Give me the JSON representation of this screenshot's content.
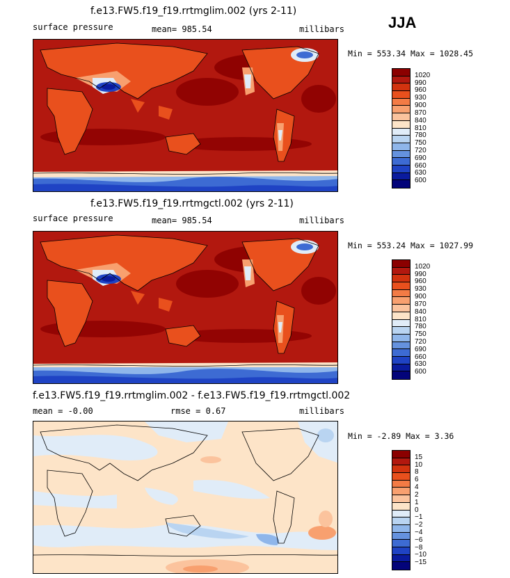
{
  "season": "JJA",
  "panels": [
    {
      "title": "f.e13.FW5.f19_f19.rrtmglim.002 (yrs 2-11)",
      "variable": "surface pressure",
      "stat": "mean=  985.54",
      "units": "millibars",
      "minmax": "Min = 553.34  Max = 1028.45",
      "colorbar_levels": [
        "1020",
        "990",
        "960",
        "930",
        "900",
        "870",
        "840",
        "810",
        "780",
        "750",
        "720",
        "690",
        "660",
        "630",
        "600"
      ],
      "colorbar_colors": [
        "#8b0000",
        "#b2180f",
        "#d2330f",
        "#e9501d",
        "#f37b45",
        "#f8a06f",
        "#fbc39d",
        "#fde4c8",
        "#e0ecf8",
        "#b9d4f1",
        "#8fb6ea",
        "#6592de",
        "#3d6bd3",
        "#1f43c4",
        "#0a1b9e",
        "#03047a"
      ]
    },
    {
      "title": "f.e13.FW5.f19_f19.rrtmgctl.002 (yrs 2-11)",
      "variable": "surface pressure",
      "stat": "mean=  985.54",
      "units": "millibars",
      "minmax": "Min = 553.24  Max = 1027.99",
      "colorbar_levels": [
        "1020",
        "990",
        "960",
        "930",
        "900",
        "870",
        "840",
        "810",
        "780",
        "750",
        "720",
        "690",
        "660",
        "630",
        "600"
      ],
      "colorbar_colors": [
        "#8b0000",
        "#b2180f",
        "#d2330f",
        "#e9501d",
        "#f37b45",
        "#f8a06f",
        "#fbc39d",
        "#fde4c8",
        "#e0ecf8",
        "#b9d4f1",
        "#8fb6ea",
        "#6592de",
        "#3d6bd3",
        "#1f43c4",
        "#0a1b9e",
        "#03047a"
      ]
    },
    {
      "title": "f.e13.FW5.f19_f19.rrtmglim.002 - f.e13.FW5.f19_f19.rrtmgctl.002",
      "variable": "mean =   -0.00",
      "stat": "rmse =    0.67",
      "units": "millibars",
      "minmax": "Min =  -2.89  Max =    3.36",
      "colorbar_levels": [
        "15",
        "10",
        "8",
        "6",
        "4",
        "2",
        "1",
        "0",
        "−1",
        "−2",
        "−4",
        "−6",
        "−8",
        "−10",
        "−15"
      ],
      "colorbar_colors": [
        "#8b0000",
        "#b2180f",
        "#d2330f",
        "#e9501d",
        "#f37b45",
        "#f8a06f",
        "#fbc39d",
        "#fde4c8",
        "#e0ecf8",
        "#b9d4f1",
        "#8fb6ea",
        "#6592de",
        "#3d6bd3",
        "#1f43c4",
        "#0a1b9e",
        "#03047a"
      ]
    }
  ],
  "chart_data": [
    {
      "type": "heatmap",
      "title": "f.e13.FW5.f19_f19.rrtmglim.002 (yrs 2-11)",
      "variable": "surface pressure",
      "units": "millibars",
      "mean": 985.54,
      "min": 553.34,
      "max": 1028.45,
      "levels": [
        600,
        630,
        660,
        690,
        720,
        750,
        780,
        810,
        840,
        870,
        900,
        930,
        960,
        990,
        1020
      ]
    },
    {
      "type": "heatmap",
      "title": "f.e13.FW5.f19_f19.rrtmgctl.002 (yrs 2-11)",
      "variable": "surface pressure",
      "units": "millibars",
      "mean": 985.54,
      "min": 553.24,
      "max": 1027.99,
      "levels": [
        600,
        630,
        660,
        690,
        720,
        750,
        780,
        810,
        840,
        870,
        900,
        930,
        960,
        990,
        1020
      ]
    },
    {
      "type": "heatmap",
      "title": "f.e13.FW5.f19_f19.rrtmglim.002 - f.e13.FW5.f19_f19.rrtmgctl.002",
      "units": "millibars",
      "mean": -0.0,
      "rmse": 0.67,
      "min": -2.89,
      "max": 3.36,
      "levels": [
        -15,
        -10,
        -8,
        -6,
        -4,
        -2,
        -1,
        0,
        1,
        2,
        4,
        6,
        8,
        10,
        15
      ]
    }
  ]
}
